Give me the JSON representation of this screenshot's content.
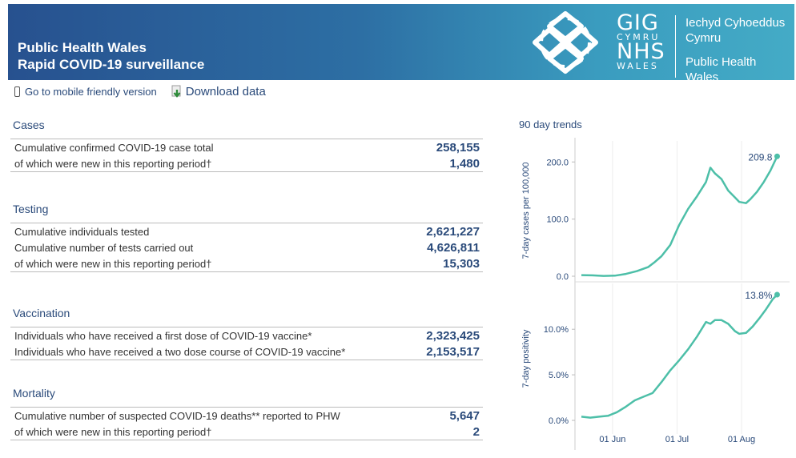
{
  "header": {
    "title_line1": "Public Health Wales",
    "title_line2": "Rapid COVID-19 surveillance",
    "logo": {
      "gig": "GIG",
      "cymru": "CYMRU",
      "nhs": "NHS",
      "wales": "WALES",
      "welsh_name_1": "Iechyd Cyhoeddus",
      "welsh_name_2": "Cymru",
      "english_name_1": "Public Health",
      "english_name_2": "Wales"
    }
  },
  "toolbar": {
    "mobile_link": "Go to mobile friendly version",
    "download_label": "Download data"
  },
  "sections": {
    "cases": {
      "title": "Cases",
      "rows": [
        {
          "label": "Cumulative confirmed COVID-19 case total",
          "value": "258,155"
        },
        {
          "label": "of which were new in this reporting period†",
          "value": "1,480"
        }
      ]
    },
    "testing": {
      "title": "Testing",
      "rows": [
        {
          "label": "Cumulative individuals tested",
          "value": "2,621,227"
        },
        {
          "label": "Cumulative number of tests carried out",
          "value": "4,626,811"
        },
        {
          "label": "of which were new in this reporting period†",
          "value": "15,303"
        }
      ]
    },
    "vaccination": {
      "title": "Vaccination",
      "rows": [
        {
          "label": "Individuals who have received a first dose of COVID-19 vaccine*",
          "value": "2,323,425"
        },
        {
          "label": "Individuals who have received a two dose course of COVID-19 vaccine*",
          "value": "2,153,517"
        }
      ]
    },
    "mortality": {
      "title": "Mortality",
      "rows": [
        {
          "label": "Cumulative number of suspected COVID-19 deaths** reported to PHW",
          "value": "5,647"
        },
        {
          "label": "of which were new in this reporting period†",
          "value": "2"
        }
      ]
    }
  },
  "trends": {
    "title": "90 day trends",
    "line_color": "#4dbfa8"
  },
  "chart_data": [
    {
      "type": "line",
      "title": "",
      "ylabel": "7-day cases per 100,000",
      "ylim": [
        0,
        220
      ],
      "yticks": [
        0,
        100,
        200
      ],
      "ytick_labels": [
        "0.0",
        "100.0",
        "200.0"
      ],
      "xlim": [
        0,
        90
      ],
      "x": [
        0,
        5,
        10,
        15,
        20,
        25,
        30,
        33,
        36,
        40,
        44,
        48,
        52,
        56,
        58,
        60,
        63,
        66,
        69,
        71,
        74,
        76,
        79,
        82,
        85,
        88
      ],
      "values": [
        2,
        1.5,
        0.5,
        1,
        4,
        9,
        16,
        25,
        35,
        55,
        90,
        118,
        140,
        165,
        190,
        180,
        170,
        150,
        138,
        130,
        128,
        135,
        148,
        165,
        185,
        209.8
      ],
      "last_label": "209.8",
      "xticks": [
        14,
        43,
        72
      ],
      "xtick_labels": [
        "01 Jun",
        "01 Jul",
        "01 Aug"
      ]
    },
    {
      "type": "line",
      "title": "",
      "ylabel": "7-day positivity",
      "ylim": [
        0,
        14.5
      ],
      "yticks": [
        0,
        5,
        10
      ],
      "ytick_labels": [
        "0.0%",
        "5.0%",
        "10.0%"
      ],
      "xlim": [
        0,
        90
      ],
      "x": [
        0,
        4,
        8,
        12,
        16,
        20,
        24,
        28,
        32,
        36,
        40,
        44,
        48,
        52,
        56,
        58,
        60,
        63,
        66,
        69,
        71,
        74,
        77,
        80,
        83,
        86,
        88
      ],
      "values": [
        0.4,
        0.3,
        0.4,
        0.5,
        0.9,
        1.5,
        2.2,
        2.6,
        3.0,
        4.2,
        5.5,
        6.6,
        7.8,
        9.2,
        10.8,
        10.6,
        11.0,
        11.0,
        10.6,
        9.8,
        9.5,
        9.6,
        10.3,
        11.2,
        12.2,
        13.3,
        13.8
      ],
      "last_label": "13.8%",
      "xticks": [
        14,
        43,
        72
      ],
      "xtick_labels": [
        "01 Jun",
        "01 Jul",
        "01 Aug"
      ]
    }
  ]
}
